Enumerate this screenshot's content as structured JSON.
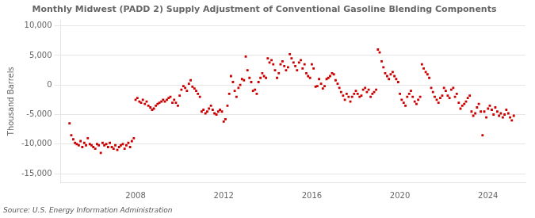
{
  "chart_data": {
    "type": "scatter",
    "title": "Monthly Midwest (PADD 2) Supply Adjustment of Conventional Gasoline Blending Components",
    "ylabel": "Thousand Barrels",
    "annotation": "Source: U.S. Energy Information Administration",
    "color": "#cc0000",
    "marker": "square",
    "grid": "y",
    "xlim": [
      2004.6,
      2025.7
    ],
    "xticks": [
      2008,
      2012,
      2016,
      2020,
      2024
    ],
    "ylim": [
      -16500,
      11000
    ],
    "yticks": [
      {
        "value": -15000,
        "label": "-15,000"
      },
      {
        "value": -10000,
        "label": "-10,000"
      },
      {
        "value": -5000,
        "label": "-5,000"
      },
      0,
      {
        "value": 5000,
        "label": "5,000"
      },
      {
        "value": 10000,
        "label": "10,000"
      }
    ],
    "x": [
      2005.0,
      2005.08,
      2005.17,
      2005.25,
      2005.33,
      2005.42,
      2005.5,
      2005.58,
      2005.67,
      2005.75,
      2005.83,
      2005.92,
      2006.0,
      2006.08,
      2006.17,
      2006.25,
      2006.33,
      2006.42,
      2006.5,
      2006.58,
      2006.67,
      2006.75,
      2006.83,
      2006.92,
      2007.0,
      2007.08,
      2007.17,
      2007.25,
      2007.33,
      2007.42,
      2007.5,
      2007.58,
      2007.67,
      2007.75,
      2007.83,
      2007.92,
      2008.0,
      2008.08,
      2008.17,
      2008.25,
      2008.33,
      2008.42,
      2008.5,
      2008.58,
      2008.67,
      2008.75,
      2008.83,
      2008.92,
      2009.0,
      2009.08,
      2009.17,
      2009.25,
      2009.33,
      2009.42,
      2009.5,
      2009.58,
      2009.67,
      2009.75,
      2009.83,
      2009.92,
      2010.0,
      2010.08,
      2010.17,
      2010.25,
      2010.33,
      2010.42,
      2010.5,
      2010.58,
      2010.67,
      2010.75,
      2010.83,
      2010.92,
      2011.0,
      2011.08,
      2011.17,
      2011.25,
      2011.33,
      2011.42,
      2011.5,
      2011.58,
      2011.67,
      2011.75,
      2011.83,
      2011.92,
      2012.0,
      2012.08,
      2012.17,
      2012.25,
      2012.33,
      2012.42,
      2012.5,
      2012.58,
      2012.67,
      2012.75,
      2012.83,
      2012.92,
      2013.0,
      2013.08,
      2013.17,
      2013.25,
      2013.33,
      2013.42,
      2013.5,
      2013.58,
      2013.67,
      2013.75,
      2013.83,
      2013.92,
      2014.0,
      2014.08,
      2014.17,
      2014.25,
      2014.33,
      2014.42,
      2014.5,
      2014.58,
      2014.67,
      2014.75,
      2014.83,
      2014.92,
      2015.0,
      2015.08,
      2015.17,
      2015.25,
      2015.33,
      2015.42,
      2015.5,
      2015.58,
      2015.67,
      2015.75,
      2015.83,
      2015.92,
      2016.0,
      2016.08,
      2016.17,
      2016.25,
      2016.33,
      2016.42,
      2016.5,
      2016.58,
      2016.67,
      2016.75,
      2016.83,
      2016.92,
      2017.0,
      2017.08,
      2017.17,
      2017.25,
      2017.33,
      2017.42,
      2017.5,
      2017.58,
      2017.67,
      2017.75,
      2017.83,
      2017.92,
      2018.0,
      2018.08,
      2018.17,
      2018.25,
      2018.33,
      2018.42,
      2018.5,
      2018.58,
      2018.67,
      2018.75,
      2018.83,
      2018.92,
      2019.0,
      2019.08,
      2019.17,
      2019.25,
      2019.33,
      2019.42,
      2019.5,
      2019.58,
      2019.67,
      2019.75,
      2019.83,
      2019.92,
      2020.0,
      2020.08,
      2020.17,
      2020.25,
      2020.33,
      2020.42,
      2020.5,
      2020.58,
      2020.67,
      2020.75,
      2020.83,
      2020.92,
      2021.0,
      2021.08,
      2021.17,
      2021.25,
      2021.33,
      2021.42,
      2021.5,
      2021.58,
      2021.67,
      2021.75,
      2021.83,
      2021.92,
      2022.0,
      2022.08,
      2022.17,
      2022.25,
      2022.33,
      2022.42,
      2022.5,
      2022.58,
      2022.67,
      2022.75,
      2022.83,
      2022.92,
      2023.0,
      2023.08,
      2023.17,
      2023.25,
      2023.33,
      2023.42,
      2023.5,
      2023.58,
      2023.67,
      2023.75,
      2023.83,
      2023.92,
      2024.0,
      2024.08,
      2024.17,
      2024.25,
      2024.33,
      2024.42,
      2024.5,
      2024.58,
      2024.67,
      2024.75,
      2024.83,
      2024.92,
      2025.0,
      2025.08,
      2025.17
    ],
    "values": [
      -6500,
      -8500,
      -9200,
      -9800,
      -10000,
      -10200,
      -9500,
      -10500,
      -9800,
      -10200,
      -9000,
      -10000,
      -10200,
      -10500,
      -10800,
      -10000,
      -10200,
      -11500,
      -9800,
      -10200,
      -10000,
      -10500,
      -9800,
      -10500,
      -10800,
      -10200,
      -11000,
      -10500,
      -10200,
      -10000,
      -10800,
      -10200,
      -9800,
      -10500,
      -9500,
      -9000,
      -2500,
      -2200,
      -2800,
      -3000,
      -2500,
      -3200,
      -2800,
      -3500,
      -3800,
      -4200,
      -4000,
      -3500,
      -3200,
      -3000,
      -2800,
      -2500,
      -2800,
      -2500,
      -2200,
      -2000,
      -3000,
      -2500,
      -3000,
      -3500,
      -1800,
      -800,
      -200,
      -500,
      -1000,
      200,
      800,
      -300,
      -600,
      -1000,
      -1500,
      -2000,
      -4500,
      -4200,
      -4800,
      -4500,
      -4000,
      -3500,
      -4200,
      -4800,
      -5000,
      -4500,
      -4200,
      -4500,
      -6200,
      -5800,
      -3500,
      -1500,
      1500,
      500,
      -1000,
      -2000,
      -500,
      0,
      1000,
      800,
      4800,
      2500,
      1200,
      500,
      -1000,
      -800,
      -1500,
      500,
      1200,
      2000,
      1500,
      1200,
      4500,
      3800,
      4200,
      3500,
      2500,
      1200,
      2000,
      3500,
      4000,
      3200,
      2500,
      3000,
      5200,
      4500,
      3800,
      3200,
      2500,
      3800,
      4200,
      2800,
      3500,
      2000,
      1500,
      1200,
      3500,
      2800,
      -300,
      -200,
      1000,
      200,
      -600,
      -200,
      1000,
      1200,
      1500,
      2000,
      1800,
      800,
      200,
      -500,
      -1200,
      -1800,
      -2500,
      -1500,
      -2000,
      -2800,
      -2000,
      -1500,
      -1000,
      -1500,
      -2000,
      -1800,
      -800,
      -500,
      -1200,
      -800,
      -2000,
      -1500,
      -1200,
      -800,
      6000,
      5500,
      4000,
      3000,
      2000,
      1500,
      1000,
      1800,
      2200,
      1500,
      1000,
      500,
      -1500,
      -2500,
      -3000,
      -3500,
      -2000,
      -1500,
      -1000,
      -2000,
      -2800,
      -3200,
      -2500,
      -2000,
      3500,
      2800,
      2200,
      1800,
      1200,
      -500,
      -1200,
      -2000,
      -2500,
      -3000,
      -2200,
      -1800,
      -500,
      -1000,
      -1800,
      -2200,
      -800,
      -500,
      -2000,
      -1500,
      -3000,
      -4000,
      -3500,
      -3200,
      -2800,
      -2200,
      -1800,
      -4500,
      -5200,
      -4800,
      -3800,
      -3200,
      -4500,
      -8500,
      -4500,
      -5500,
      -4000,
      -3500,
      -4200,
      -5000,
      -3800,
      -4500,
      -5200,
      -4800,
      -5500,
      -5000,
      -4200,
      -4800,
      -5500,
      -6000,
      -5200
    ]
  }
}
